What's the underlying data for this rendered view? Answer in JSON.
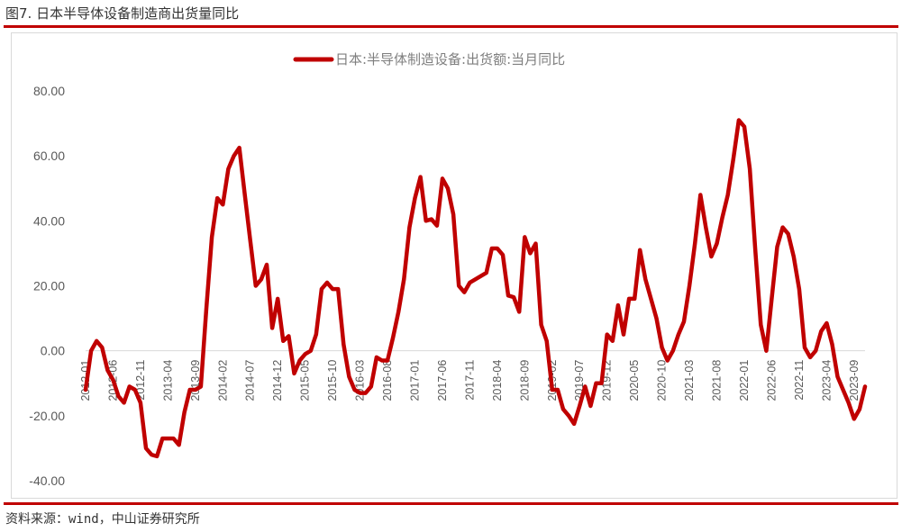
{
  "figure_title": "图7. 日本半导体设备制造商出货量同比",
  "source_text": "资料来源：wind，中山证券研究所",
  "colors": {
    "series": "#c00000",
    "rule": "#c00000",
    "axis": "#d9d9d9",
    "text": "#595959"
  },
  "chart_data": {
    "type": "line",
    "title": "",
    "xlabel": "",
    "ylabel": "",
    "ylim": [
      -40,
      80
    ],
    "yticks": [
      80,
      60,
      40,
      20,
      0,
      -20,
      -40
    ],
    "ytick_labels": [
      "80.00",
      "60.00",
      "40.00",
      "20.00",
      "0.00",
      "-20.00",
      "-40.00"
    ],
    "grid": false,
    "legend_position": "top-center",
    "x_start": "2012-01",
    "x_tick_labels": [
      "2012-01",
      "2012-06",
      "2012-11",
      "2013-04",
      "2013-09",
      "2014-02",
      "2014-07",
      "2014-12",
      "2015-05",
      "2015-10",
      "2016-03",
      "2016-08",
      "2017-01",
      "2017-06",
      "2017-11",
      "2018-04",
      "2018-09",
      "2019-02",
      "2019-07",
      "2019-12",
      "2020-05",
      "2020-10",
      "2021-03",
      "2021-08",
      "2022-01",
      "2022-06",
      "2022-11",
      "2023-04",
      "2023-09"
    ],
    "series": [
      {
        "name": "日本:半导体制造设备:出货额:当月同比",
        "color": "#c00000",
        "values": [
          -12,
          0,
          3,
          1,
          -6,
          -9,
          -14,
          -16,
          -11,
          -12,
          -16,
          -30,
          -32,
          -32.5,
          -27,
          -27,
          -27,
          -29,
          -19,
          -12,
          -12,
          -11,
          13,
          35,
          47,
          45,
          56,
          60,
          62.5,
          48,
          34,
          20,
          22,
          26.5,
          7,
          16,
          3,
          4.5,
          -7,
          -3,
          -1,
          0,
          5,
          19,
          21,
          19,
          19,
          2,
          -8,
          -12,
          -13,
          -13,
          -11,
          -2,
          -3,
          -3,
          4,
          12,
          22,
          38,
          47,
          53.5,
          40,
          40.5,
          38.5,
          53,
          50,
          42,
          20,
          18,
          21,
          22,
          23,
          24,
          31.5,
          31.5,
          29.5,
          17,
          16.5,
          12,
          35,
          30,
          33,
          8,
          3,
          -12,
          -12,
          -18,
          -20,
          -22.5,
          -17,
          -11,
          -17,
          -10,
          -10,
          5,
          3,
          14,
          5,
          16,
          16,
          31,
          22,
          16,
          10,
          1,
          -3,
          0,
          5,
          9,
          20,
          33,
          48,
          38,
          29,
          33,
          41,
          48,
          59,
          71,
          69,
          56,
          31,
          8,
          0,
          16,
          32,
          38,
          36,
          29,
          19,
          1,
          -2,
          0,
          6,
          8.5,
          2,
          -8,
          -12,
          -16,
          -21,
          -18,
          -11
        ]
      }
    ]
  }
}
